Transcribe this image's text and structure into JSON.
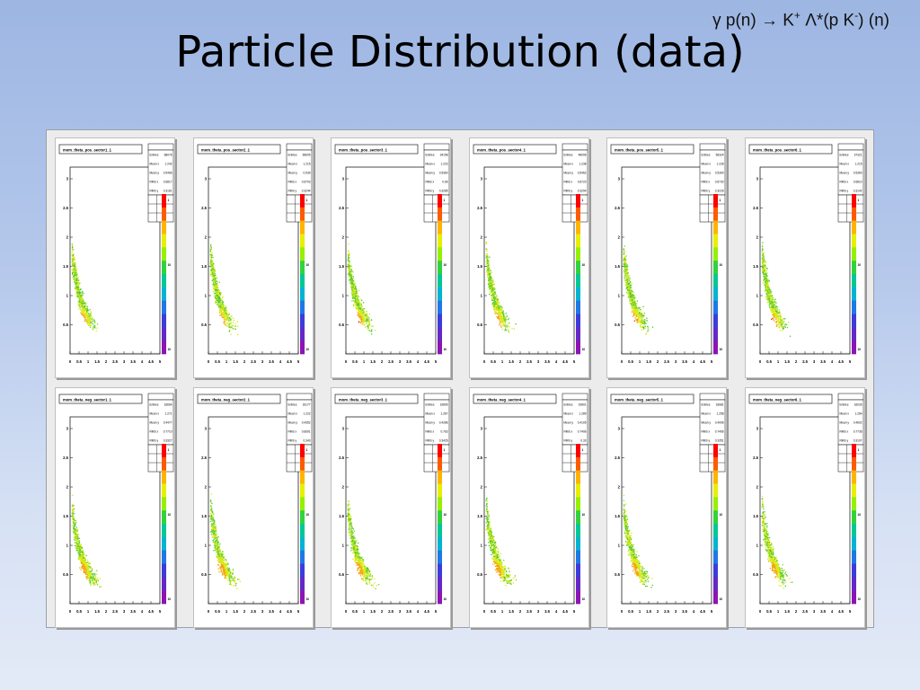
{
  "slide": {
    "reaction": {
      "gamma": "γ",
      "target": " p(n) → K",
      "kplus_sup": "+",
      "lambda": " Λ",
      "star": "*(p K",
      "kminus_sup": "-",
      "tail": ") (n)"
    },
    "title": "Particle Distribution (data)"
  },
  "colors": {
    "hot": "#e23b14",
    "warm": "#f5a40f",
    "mid": "#d9ea13",
    "cool": "#7bd428",
    "low": "#45c63a"
  },
  "chart_data": [
    {
      "type": "heatmap",
      "title": "mom_theta_pos_sector1_1",
      "row": 0,
      "col": 0,
      "xlim": [
        0,
        5
      ],
      "ylim": [
        0,
        3.2
      ],
      "xticks": [
        "0",
        "0.5",
        "1",
        "1.5",
        "2",
        "2.5",
        "3",
        "3.5",
        "4",
        "4.5",
        "5"
      ],
      "yticks": [
        "0.5",
        "1",
        "1.5",
        "2",
        "2.5",
        "3"
      ],
      "zticks": [
        "1",
        "10",
        "10"
      ],
      "stats": {
        "Entries": "68076",
        "Mean x": "1.242",
        "Mean y": "0.5466",
        "RMS x": "0.6817",
        "RMS y": "0.3161"
      }
    },
    {
      "type": "heatmap",
      "title": "mom_theta_pos_sector2_1",
      "row": 0,
      "col": 1,
      "xlim": [
        0,
        5
      ],
      "ylim": [
        0,
        3.2
      ],
      "xticks": [
        "0",
        "0.5",
        "1",
        "1.5",
        "2",
        "2.5",
        "3",
        "3.5",
        "4",
        "4.5",
        "5"
      ],
      "yticks": [
        "0.5",
        "1",
        "1.5",
        "2",
        "2.5",
        "3"
      ],
      "zticks": [
        "1",
        "10",
        "10"
      ],
      "stats": {
        "Entries": "65605",
        "Mean x": "1.215",
        "Mean y": "0.539",
        "RMS x": "0.6703",
        "RMS y": "0.3244"
      }
    },
    {
      "type": "heatmap",
      "title": "mom_theta_pos_sector3_1",
      "row": 0,
      "col": 2,
      "xlim": [
        0,
        5
      ],
      "ylim": [
        0,
        3.2
      ],
      "xticks": [
        "0",
        "0.5",
        "1",
        "1.5",
        "2",
        "2.5",
        "3",
        "3.5",
        "4",
        "4.5",
        "5"
      ],
      "yticks": [
        "0.5",
        "1",
        "1.5",
        "2",
        "2.5",
        "3"
      ],
      "zticks": [
        "1",
        "10",
        "10"
      ],
      "stats": {
        "Entries": "34158",
        "Mean x": "1.223",
        "Mean y": "0.5360",
        "RMS x": "0.66",
        "RMS y": "0.3285"
      }
    },
    {
      "type": "heatmap",
      "title": "mom_theta_pos_sector4_1",
      "row": 0,
      "col": 3,
      "xlim": [
        0,
        5
      ],
      "ylim": [
        0,
        3.2
      ],
      "xticks": [
        "0",
        "0.5",
        "1",
        "1.5",
        "2",
        "2.5",
        "3",
        "3.5",
        "4",
        "4.5",
        "5"
      ],
      "yticks": [
        "0.5",
        "1",
        "1.5",
        "2",
        "2.5",
        "3"
      ],
      "zticks": [
        "1",
        "10",
        "10"
      ],
      "stats": {
        "Entries": "48096",
        "Mean x": "1.238",
        "Mean y": "0.5462",
        "RMS x": "0.6720",
        "RMS y": "0.3294"
      }
    },
    {
      "type": "heatmap",
      "title": "mom_theta_pos_sector5_1",
      "row": 0,
      "col": 4,
      "xlim": [
        0,
        5
      ],
      "ylim": [
        0,
        3.2
      ],
      "xticks": [
        "0",
        "0.5",
        "1",
        "1.5",
        "2",
        "2.5",
        "3",
        "3.5",
        "4",
        "4.5",
        "5"
      ],
      "yticks": [
        "0.5",
        "1",
        "1.5",
        "2",
        "2.5",
        "3"
      ],
      "zticks": [
        "1",
        "10",
        "10"
      ],
      "stats": {
        "Entries": "56324",
        "Mean x": "1.228",
        "Mean y": "0.5390",
        "RMS x": "0.6730",
        "RMS y": "0.3226"
      }
    },
    {
      "type": "heatmap",
      "title": "mom_theta_pos_sector6_1",
      "row": 0,
      "col": 5,
      "xlim": [
        0,
        5
      ],
      "ylim": [
        0,
        3.2
      ],
      "xticks": [
        "0",
        "0.5",
        "1",
        "1.5",
        "2",
        "2.5",
        "3",
        "3.5",
        "4",
        "4.5",
        "5"
      ],
      "yticks": [
        "0.5",
        "1",
        "1.5",
        "2",
        "2.5",
        "3"
      ],
      "zticks": [
        "1",
        "10",
        "10"
      ],
      "stats": {
        "Entries": "37321",
        "Mean x": "1.215",
        "Mean y": "0.5360",
        "RMS x": "0.6810",
        "RMS y": "0.3142"
      }
    },
    {
      "type": "heatmap",
      "title": "mom_theta_neg_sector1_1",
      "row": 1,
      "col": 0,
      "xlim": [
        0,
        5
      ],
      "ylim": [
        0,
        3.2
      ],
      "xticks": [
        "0",
        "0.5",
        "1",
        "1.5",
        "2",
        "2.5",
        "3",
        "3.5",
        "4",
        "4.5",
        "5"
      ],
      "yticks": [
        "0.5",
        "1",
        "1.5",
        "2",
        "2.5",
        "3"
      ],
      "zticks": [
        "1",
        "10",
        "10"
      ],
      "stats": {
        "Entries": "16664",
        "Mean x": "1.271",
        "Mean y": "0.4477",
        "RMS x": "0.7710",
        "RMS y": "0.3327"
      }
    },
    {
      "type": "heatmap",
      "title": "mom_theta_neg_sector2_1",
      "row": 1,
      "col": 1,
      "xlim": [
        0,
        5
      ],
      "ylim": [
        0,
        3.2
      ],
      "xticks": [
        "0",
        "0.5",
        "1",
        "1.5",
        "2",
        "2.5",
        "3",
        "3.5",
        "4",
        "4.5",
        "5"
      ],
      "yticks": [
        "0.5",
        "1",
        "1.5",
        "2",
        "2.5",
        "3"
      ],
      "zticks": [
        "1",
        "10",
        "10"
      ],
      "stats": {
        "Entries": "16177",
        "Mean x": "1.222",
        "Mean y": "0.4352",
        "RMS x": "0.6691",
        "RMS y": "0.343"
      }
    },
    {
      "type": "heatmap",
      "title": "mom_theta_neg_sector3_1",
      "row": 1,
      "col": 2,
      "xlim": [
        0,
        5
      ],
      "ylim": [
        0,
        3.2
      ],
      "xticks": [
        "0",
        "0.5",
        "1",
        "1.5",
        "2",
        "2.5",
        "3",
        "3.5",
        "4",
        "4.5",
        "5"
      ],
      "yticks": [
        "0.5",
        "1",
        "1.5",
        "2",
        "2.5",
        "3"
      ],
      "zticks": [
        "1",
        "10",
        "10"
      ],
      "stats": {
        "Entries": "10806",
        "Mean x": "1.267",
        "Mean y": "0.4286",
        "RMS x": "0.763",
        "RMS y": "0.3426"
      }
    },
    {
      "type": "heatmap",
      "title": "mom_theta_neg_sector4_1",
      "row": 1,
      "col": 3,
      "xlim": [
        0,
        5
      ],
      "ylim": [
        0,
        3.2
      ],
      "xticks": [
        "0",
        "0.5",
        "1",
        "1.5",
        "2",
        "2.5",
        "3",
        "3.5",
        "4",
        "4.5",
        "5"
      ],
      "yticks": [
        "0.5",
        "1",
        "1.5",
        "2",
        "2.5",
        "3"
      ],
      "zticks": [
        "1",
        "10",
        "10"
      ],
      "stats": {
        "Entries": "10801",
        "Mean x": "1.289",
        "Mean y": "0.4105",
        "RMS x": "0.7496",
        "RMS y": "0.33"
      }
    },
    {
      "type": "heatmap",
      "title": "mom_theta_neg_sector5_1",
      "row": 1,
      "col": 4,
      "xlim": [
        0,
        5
      ],
      "ylim": [
        0,
        3.2
      ],
      "xticks": [
        "0",
        "0.5",
        "1",
        "1.5",
        "2",
        "2.5",
        "3",
        "3.5",
        "4",
        "4.5",
        "5"
      ],
      "yticks": [
        "0.5",
        "1",
        "1.5",
        "2",
        "2.5",
        "3"
      ],
      "zticks": [
        "1",
        "10",
        "10"
      ],
      "stats": {
        "Entries": "16681",
        "Mean x": "1.258",
        "Mean y": "0.4096",
        "RMS x": "0.7496",
        "RMS y": "0.3351"
      }
    },
    {
      "type": "heatmap",
      "title": "mom_theta_neg_sector6_1",
      "row": 1,
      "col": 5,
      "xlim": [
        0,
        5
      ],
      "ylim": [
        0,
        3.2
      ],
      "xticks": [
        "0",
        "0.5",
        "1",
        "1.5",
        "2",
        "2.5",
        "3",
        "3.5",
        "4",
        "4.5",
        "5"
      ],
      "yticks": [
        "0.5",
        "1",
        "1.5",
        "2",
        "2.5",
        "3"
      ],
      "zticks": [
        "1",
        "10",
        "10"
      ],
      "stats": {
        "Entries": "16026",
        "Mean x": "1.264",
        "Mean y": "0.4602",
        "RMS x": "0.7736",
        "RMS y": "0.3107"
      }
    }
  ]
}
